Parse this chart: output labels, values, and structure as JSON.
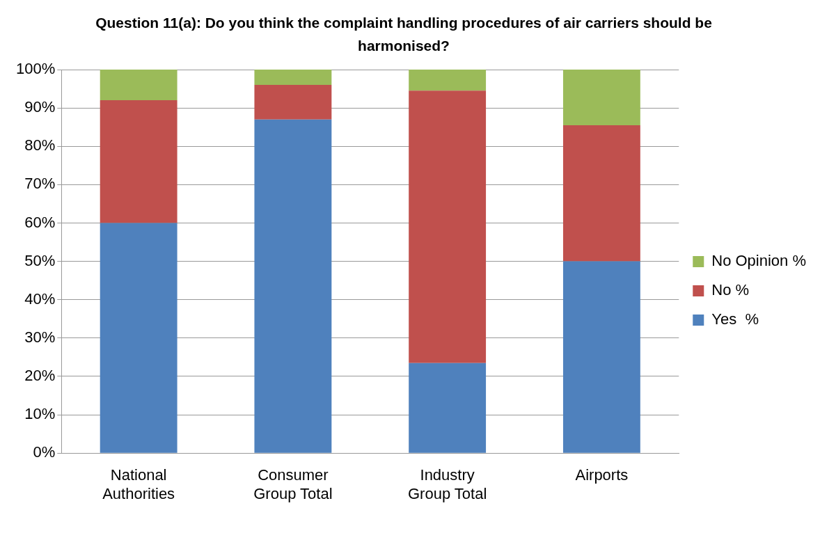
{
  "chart_data": {
    "type": "bar",
    "stacked": true,
    "title": "Question 11(a): Do you think the complaint handling procedures of air carriers should be harmonised?",
    "categories": [
      "National Authorities",
      "Consumer Group Total",
      "Industry Group Total",
      "Airports"
    ],
    "series": [
      {
        "name": "Yes  %",
        "color": "#4f81bd",
        "values": [
          60,
          87,
          23.5,
          50
        ]
      },
      {
        "name": "No %",
        "color": "#c0504d",
        "values": [
          32,
          9,
          71,
          35.5
        ]
      },
      {
        "name": "No Opinion %",
        "color": "#9bbb59",
        "values": [
          8,
          4,
          5.5,
          14.5
        ]
      }
    ],
    "ylim": [
      0,
      100
    ],
    "yticks": [
      {
        "value": 0,
        "label": "0%"
      },
      {
        "value": 10,
        "label": "10%"
      },
      {
        "value": 20,
        "label": "20%"
      },
      {
        "value": 30,
        "label": "30%"
      },
      {
        "value": 40,
        "label": "40%"
      },
      {
        "value": 50,
        "label": "50%"
      },
      {
        "value": 60,
        "label": "60%"
      },
      {
        "value": 70,
        "label": "70%"
      },
      {
        "value": 80,
        "label": "80%"
      },
      {
        "value": 90,
        "label": "90%"
      },
      {
        "value": 100,
        "label": "100%"
      }
    ],
    "grid": "y",
    "legend": "right"
  }
}
